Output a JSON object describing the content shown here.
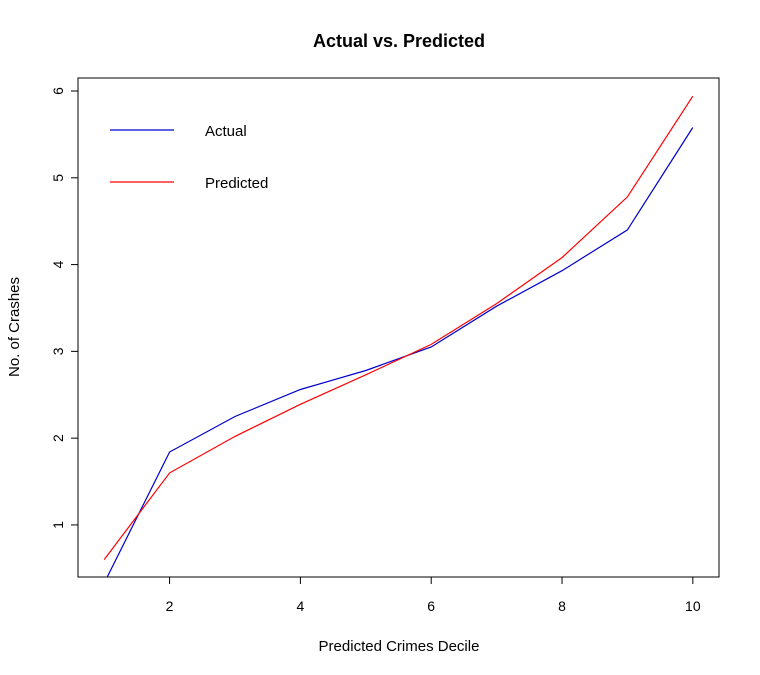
{
  "chart_data": {
    "type": "line",
    "title": "Actual vs. Predicted",
    "xlabel": "Predicted Crimes Decile",
    "ylabel": "No. of Crashes",
    "x": [
      1,
      2,
      3,
      4,
      5,
      6,
      7,
      8,
      9,
      10
    ],
    "xlim": [
      0.6,
      10.4
    ],
    "ylim": [
      0.4,
      6.15
    ],
    "x_ticks": [
      2,
      4,
      6,
      8,
      10
    ],
    "y_ticks": [
      1,
      2,
      3,
      4,
      5,
      6
    ],
    "grid": false,
    "legend_position": "top-left",
    "series": [
      {
        "name": "Actual",
        "color": "#0000CC",
        "values": [
          0.33,
          1.84,
          2.25,
          2.56,
          2.78,
          3.05,
          3.52,
          3.93,
          4.4,
          5.58
        ]
      },
      {
        "name": "Predicted",
        "color": "#FF0000",
        "values": [
          0.6,
          1.6,
          2.02,
          2.39,
          2.73,
          3.08,
          3.55,
          4.08,
          4.78,
          5.94
        ]
      }
    ]
  }
}
